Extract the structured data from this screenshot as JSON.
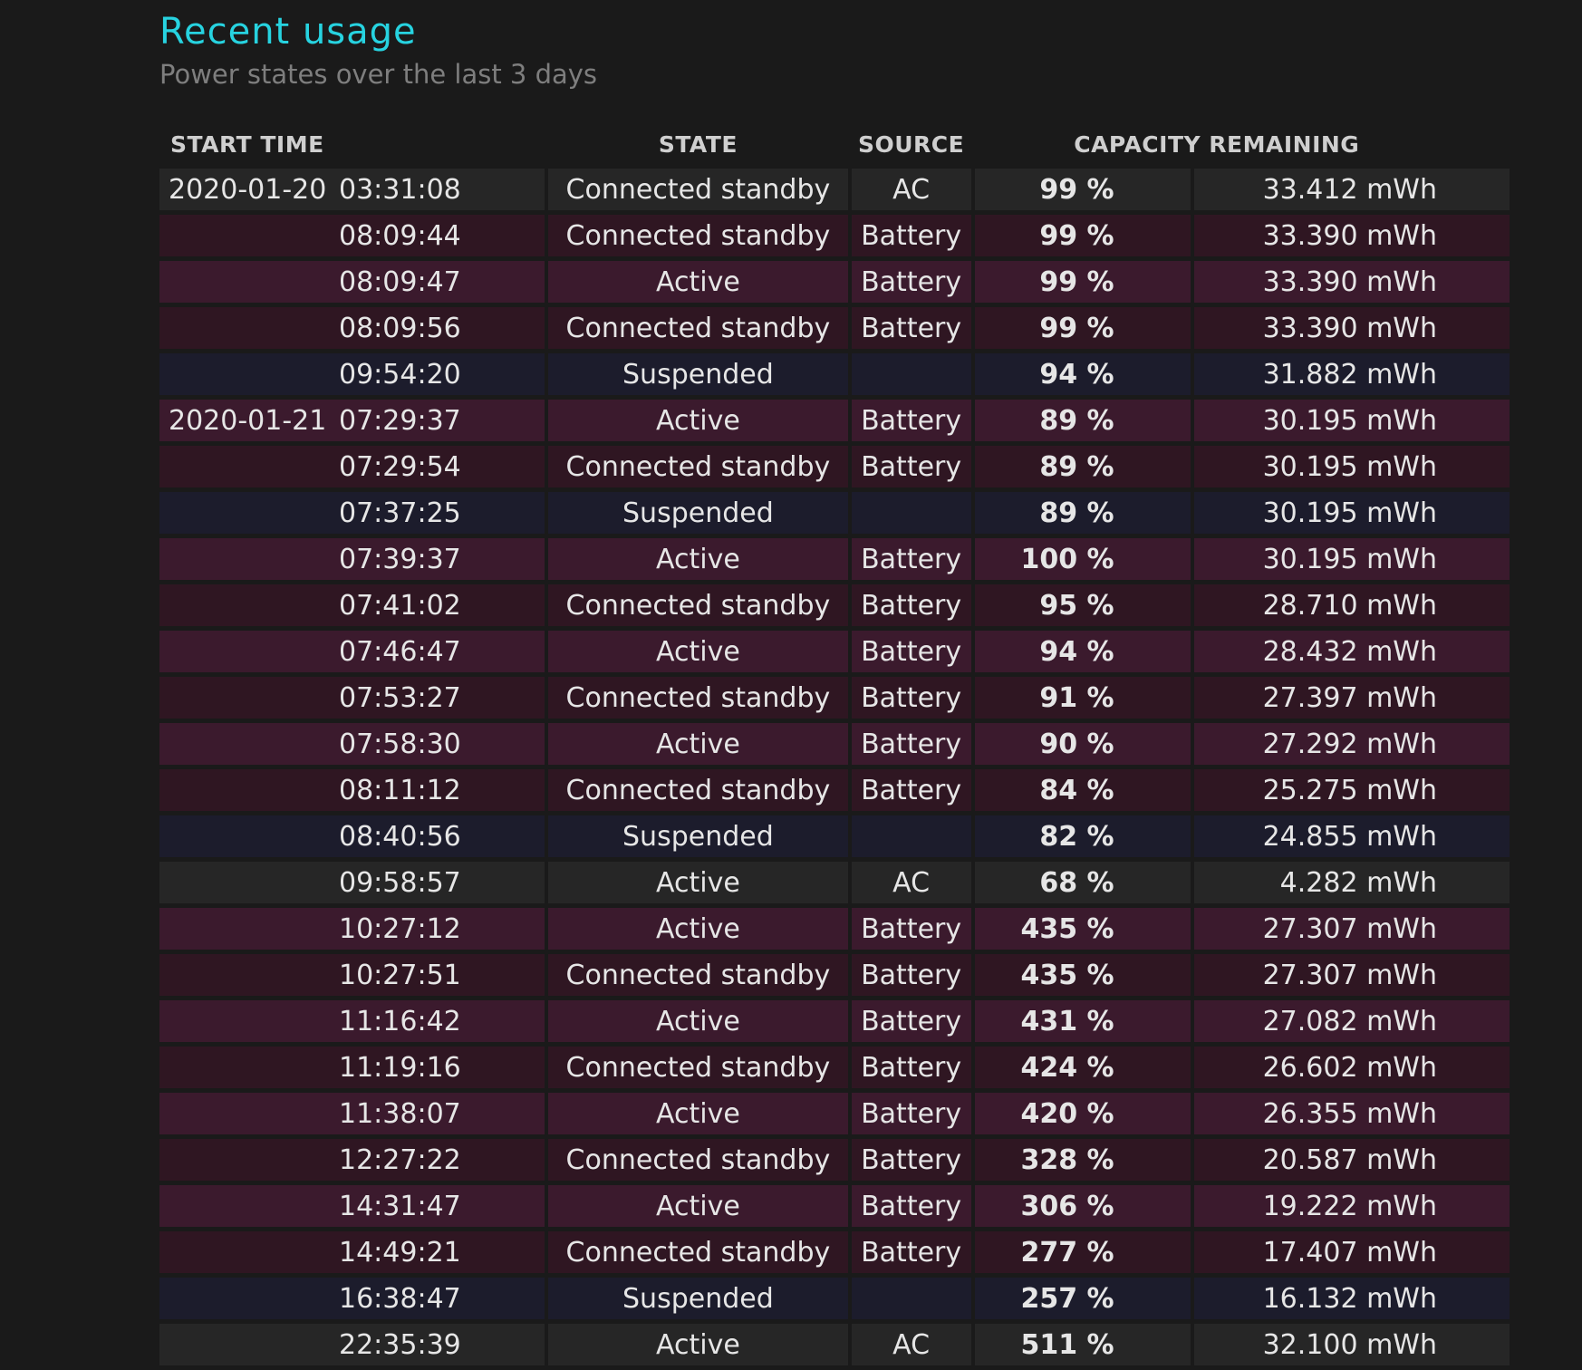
{
  "header": {
    "title": "Recent usage",
    "subtitle": "Power states over the last 3 days"
  },
  "table": {
    "columns": [
      "START TIME",
      "STATE",
      "SOURCE",
      "CAPACITY REMAINING"
    ],
    "rows": [
      {
        "date": "2020-01-20",
        "time": "03:31:08",
        "state": "Connected standby",
        "source": "AC",
        "pct": "99 %",
        "capacity": "33.412 mWh",
        "kind": "ac"
      },
      {
        "date": "",
        "time": "08:09:44",
        "state": "Connected standby",
        "source": "Battery",
        "pct": "99 %",
        "capacity": "33.390 mWh",
        "kind": "cs"
      },
      {
        "date": "",
        "time": "08:09:47",
        "state": "Active",
        "source": "Battery",
        "pct": "99 %",
        "capacity": "33.390 mWh",
        "kind": "act"
      },
      {
        "date": "",
        "time": "08:09:56",
        "state": "Connected standby",
        "source": "Battery",
        "pct": "99 %",
        "capacity": "33.390 mWh",
        "kind": "cs"
      },
      {
        "date": "",
        "time": "09:54:20",
        "state": "Suspended",
        "source": "",
        "pct": "94 %",
        "capacity": "31.882 mWh",
        "kind": "sus"
      },
      {
        "date": "2020-01-21",
        "time": "07:29:37",
        "state": "Active",
        "source": "Battery",
        "pct": "89 %",
        "capacity": "30.195 mWh",
        "kind": "act"
      },
      {
        "date": "",
        "time": "07:29:54",
        "state": "Connected standby",
        "source": "Battery",
        "pct": "89 %",
        "capacity": "30.195 mWh",
        "kind": "cs"
      },
      {
        "date": "",
        "time": "07:37:25",
        "state": "Suspended",
        "source": "",
        "pct": "89 %",
        "capacity": "30.195 mWh",
        "kind": "sus"
      },
      {
        "date": "",
        "time": "07:39:37",
        "state": "Active",
        "source": "Battery",
        "pct": "100 %",
        "capacity": "30.195 mWh",
        "kind": "act"
      },
      {
        "date": "",
        "time": "07:41:02",
        "state": "Connected standby",
        "source": "Battery",
        "pct": "95 %",
        "capacity": "28.710 mWh",
        "kind": "cs"
      },
      {
        "date": "",
        "time": "07:46:47",
        "state": "Active",
        "source": "Battery",
        "pct": "94 %",
        "capacity": "28.432 mWh",
        "kind": "act"
      },
      {
        "date": "",
        "time": "07:53:27",
        "state": "Connected standby",
        "source": "Battery",
        "pct": "91 %",
        "capacity": "27.397 mWh",
        "kind": "cs"
      },
      {
        "date": "",
        "time": "07:58:30",
        "state": "Active",
        "source": "Battery",
        "pct": "90 %",
        "capacity": "27.292 mWh",
        "kind": "act"
      },
      {
        "date": "",
        "time": "08:11:12",
        "state": "Connected standby",
        "source": "Battery",
        "pct": "84 %",
        "capacity": "25.275 mWh",
        "kind": "cs"
      },
      {
        "date": "",
        "time": "08:40:56",
        "state": "Suspended",
        "source": "",
        "pct": "82 %",
        "capacity": "24.855 mWh",
        "kind": "sus"
      },
      {
        "date": "",
        "time": "09:58:57",
        "state": "Active",
        "source": "AC",
        "pct": "68 %",
        "capacity": "4.282 mWh",
        "kind": "ac"
      },
      {
        "date": "",
        "time": "10:27:12",
        "state": "Active",
        "source": "Battery",
        "pct": "435 %",
        "capacity": "27.307 mWh",
        "kind": "act"
      },
      {
        "date": "",
        "time": "10:27:51",
        "state": "Connected standby",
        "source": "Battery",
        "pct": "435 %",
        "capacity": "27.307 mWh",
        "kind": "cs"
      },
      {
        "date": "",
        "time": "11:16:42",
        "state": "Active",
        "source": "Battery",
        "pct": "431 %",
        "capacity": "27.082 mWh",
        "kind": "act"
      },
      {
        "date": "",
        "time": "11:19:16",
        "state": "Connected standby",
        "source": "Battery",
        "pct": "424 %",
        "capacity": "26.602 mWh",
        "kind": "cs"
      },
      {
        "date": "",
        "time": "11:38:07",
        "state": "Active",
        "source": "Battery",
        "pct": "420 %",
        "capacity": "26.355 mWh",
        "kind": "act"
      },
      {
        "date": "",
        "time": "12:27:22",
        "state": "Connected standby",
        "source": "Battery",
        "pct": "328 %",
        "capacity": "20.587 mWh",
        "kind": "cs"
      },
      {
        "date": "",
        "time": "14:31:47",
        "state": "Active",
        "source": "Battery",
        "pct": "306 %",
        "capacity": "19.222 mWh",
        "kind": "act"
      },
      {
        "date": "",
        "time": "14:49:21",
        "state": "Connected standby",
        "source": "Battery",
        "pct": "277 %",
        "capacity": "17.407 mWh",
        "kind": "cs"
      },
      {
        "date": "",
        "time": "16:38:47",
        "state": "Suspended",
        "source": "",
        "pct": "257 %",
        "capacity": "16.132 mWh",
        "kind": "sus"
      },
      {
        "date": "",
        "time": "22:35:39",
        "state": "Active",
        "source": "AC",
        "pct": "511 %",
        "capacity": "32.100 mWh",
        "kind": "ac"
      }
    ]
  },
  "colors": {
    "title": "#27d3e0",
    "ac_row": "#262626",
    "active_row": "#3b1a2d",
    "standby_row": "#2f1622",
    "suspended_row": "#1c1c2c"
  }
}
